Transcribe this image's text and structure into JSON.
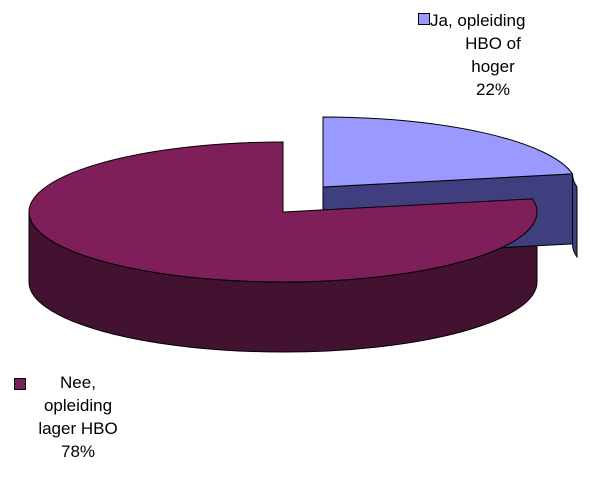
{
  "chart_data": {
    "type": "pie",
    "style": "3d-exploded",
    "title": "",
    "slices": [
      {
        "label": "Ja, opleiding HBO of hoger",
        "label_lines": [
          "Ja, opleiding",
          "HBO of",
          "hoger"
        ],
        "value": 22,
        "value_text": "22%",
        "color": "#9999ff",
        "side_color": "#3f3f80"
      },
      {
        "label": "Nee, opleiding lager HBO",
        "label_lines": [
          "Nee,",
          "opleiding",
          "lager HBO"
        ],
        "value": 78,
        "value_text": "78%",
        "color": "#7f1f5a",
        "side_color": "#431230"
      }
    ],
    "legend": "none",
    "data_labels": "category and percent"
  }
}
